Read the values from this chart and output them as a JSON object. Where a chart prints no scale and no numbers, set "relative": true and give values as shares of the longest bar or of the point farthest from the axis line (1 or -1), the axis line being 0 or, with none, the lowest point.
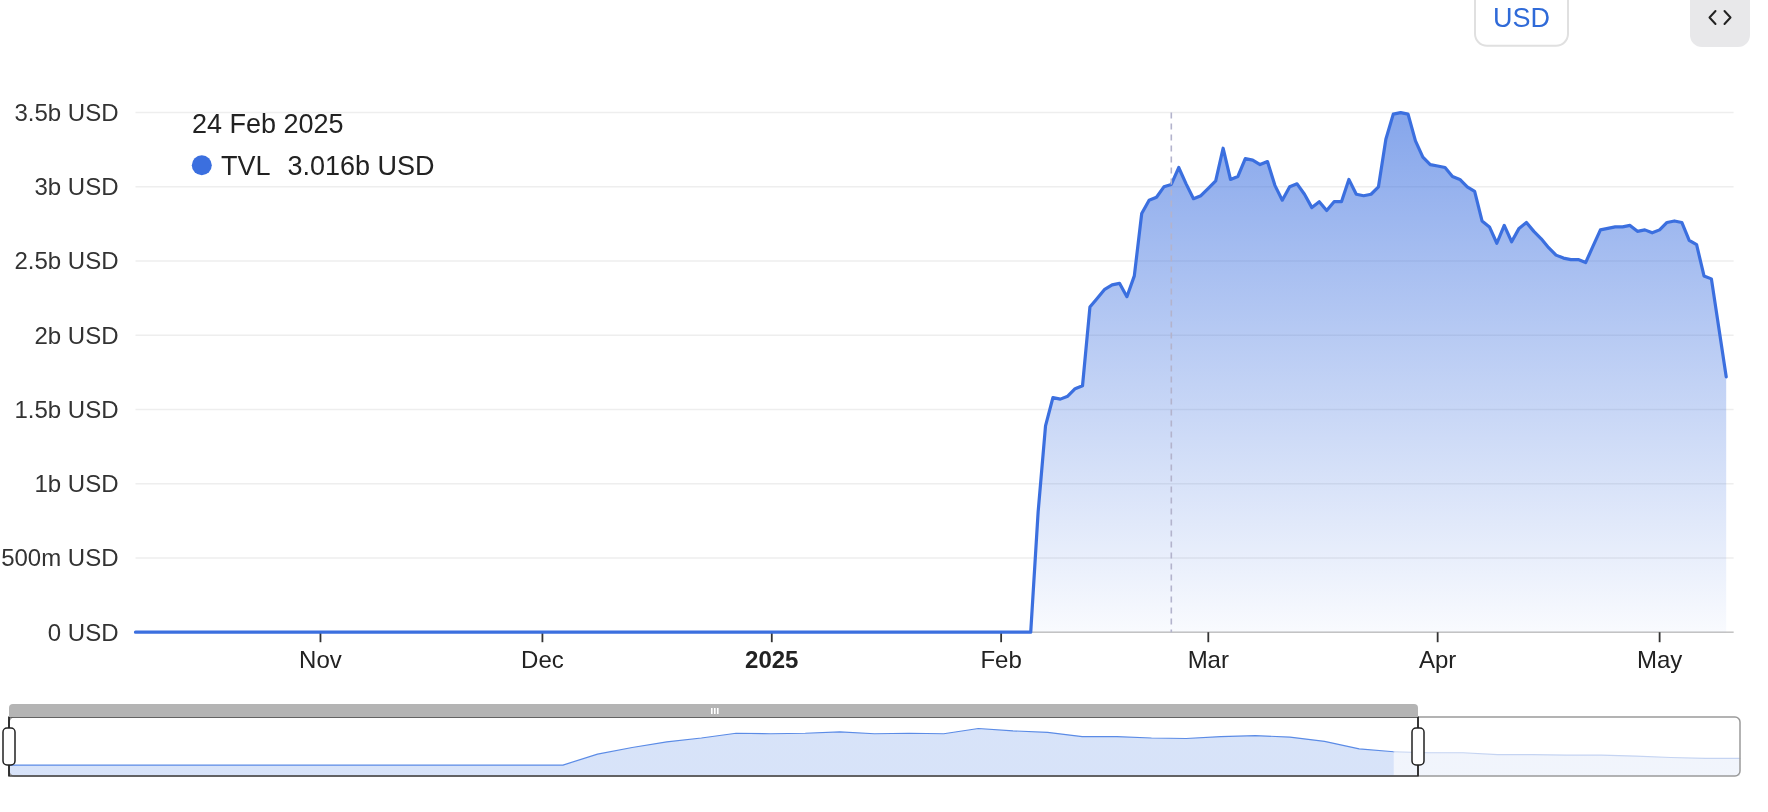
{
  "chart_data": [
    {
      "type": "area",
      "x": [
        "2024-10-07",
        "2025-02-05",
        "2025-02-06",
        "2025-02-07",
        "2025-02-08",
        "2025-02-09",
        "2025-02-10",
        "2025-02-11",
        "2025-02-12",
        "2025-02-13",
        "2025-02-14",
        "2025-02-15",
        "2025-02-16",
        "2025-02-17",
        "2025-02-18",
        "2025-02-19",
        "2025-02-20",
        "2025-02-21",
        "2025-02-22",
        "2025-02-23",
        "2025-02-24",
        "2025-02-25",
        "2025-02-26",
        "2025-02-27",
        "2025-02-28",
        "2025-03-01",
        "2025-03-02",
        "2025-03-03",
        "2025-03-04",
        "2025-03-05",
        "2025-03-06",
        "2025-03-07",
        "2025-03-08",
        "2025-03-09",
        "2025-03-10",
        "2025-03-11",
        "2025-03-12",
        "2025-03-13",
        "2025-03-14",
        "2025-03-15",
        "2025-03-16",
        "2025-03-17",
        "2025-03-18",
        "2025-03-19",
        "2025-03-20",
        "2025-03-21",
        "2025-03-22",
        "2025-03-23",
        "2025-03-24",
        "2025-03-25",
        "2025-03-26",
        "2025-03-27",
        "2025-03-28",
        "2025-03-29",
        "2025-03-30",
        "2025-03-31",
        "2025-04-01",
        "2025-04-02",
        "2025-04-03",
        "2025-04-04",
        "2025-04-05",
        "2025-04-06",
        "2025-04-07",
        "2025-04-08",
        "2025-04-09",
        "2025-04-10",
        "2025-04-11",
        "2025-04-12",
        "2025-04-13",
        "2025-04-14",
        "2025-04-15",
        "2025-04-16",
        "2025-04-17",
        "2025-04-18",
        "2025-04-19",
        "2025-04-20",
        "2025-04-21",
        "2025-04-22",
        "2025-04-23",
        "2025-04-24",
        "2025-04-25",
        "2025-04-26",
        "2025-04-27",
        "2025-04-28",
        "2025-04-29",
        "2025-04-30",
        "2025-05-01",
        "2025-05-02",
        "2025-05-03",
        "2025-05-04",
        "2025-05-05",
        "2025-05-06",
        "2025-05-07",
        "2025-05-08",
        "2025-05-09",
        "2025-05-10"
      ],
      "series": [
        {
          "name": "TVL",
          "color": "#3b6fdf",
          "values": [
            0,
            0,
            810000000,
            1390000000,
            1580000000,
            1570000000,
            1590000000,
            1640000000,
            1660000000,
            2190000000,
            2250000000,
            2310000000,
            2340000000,
            2350000000,
            2260000000,
            2400000000,
            2820000000,
            2910000000,
            2930000000,
            3000000000,
            3016000000,
            3130000000,
            3020000000,
            2920000000,
            2940000000,
            2990000000,
            3040000000,
            3260000000,
            3050000000,
            3070000000,
            3190000000,
            3180000000,
            3150000000,
            3170000000,
            3010000000,
            2910000000,
            3000000000,
            3020000000,
            2950000000,
            2860000000,
            2900000000,
            2840000000,
            2900000000,
            2900000000,
            3050000000,
            2950000000,
            2940000000,
            2950000000,
            3000000000,
            3320000000,
            3490000000,
            3500000000,
            3490000000,
            3310000000,
            3200000000,
            3150000000,
            3140000000,
            3130000000,
            3070000000,
            3050000000,
            3000000000,
            2970000000,
            2770000000,
            2730000000,
            2620000000,
            2740000000,
            2630000000,
            2720000000,
            2760000000,
            2700000000,
            2650000000,
            2590000000,
            2540000000,
            2520000000,
            2510000000,
            2510000000,
            2490000000,
            2600000000,
            2710000000,
            2720000000,
            2730000000,
            2730000000,
            2740000000,
            2700000000,
            2710000000,
            2690000000,
            2710000000,
            2760000000,
            2770000000,
            2760000000,
            2640000000,
            2610000000,
            2400000000,
            2380000000,
            2050000000,
            1720000000
          ]
        }
      ],
      "xlim": [
        "2024-10-07",
        "2025-05-11"
      ],
      "xticks": [
        {
          "value": "2024-11-01",
          "label": "Nov"
        },
        {
          "value": "2024-12-01",
          "label": "Dec"
        },
        {
          "value": "2025-01-01",
          "label": "2025"
        },
        {
          "value": "2025-02-01",
          "label": "Feb"
        },
        {
          "value": "2025-03-01",
          "label": "Mar"
        },
        {
          "value": "2025-04-01",
          "label": "Apr"
        },
        {
          "value": "2025-05-01",
          "label": "May"
        }
      ],
      "ylim": [
        0,
        3500000000
      ],
      "yticks": [
        {
          "value": 0,
          "label": "0 USD"
        },
        {
          "value": 500000000,
          "label": "500m USD"
        },
        {
          "value": 1000000000,
          "label": "1b USD"
        },
        {
          "value": 1500000000,
          "label": "1.5b USD"
        },
        {
          "value": 2000000000,
          "label": "2b USD"
        },
        {
          "value": 2500000000,
          "label": "2.5b USD"
        },
        {
          "value": 3000000000,
          "label": "3b USD"
        },
        {
          "value": 3500000000,
          "label": "3.5b USD"
        }
      ],
      "grid": "y",
      "legend": "top left",
      "ref_lines": [
        {
          "axis": "x",
          "value": "2025-02-24",
          "color": "#b3b3cc",
          "line_style": "dashed"
        }
      ],
      "annotations": [
        "24 Feb 2025",
        "3.016b USD",
        "USD"
      ]
    },
    {
      "type": "area",
      "relative": true,
      "categories": [
        null,
        null,
        null,
        null,
        null,
        null,
        null,
        null,
        null,
        null,
        null,
        null,
        null,
        null,
        null,
        null,
        null,
        null,
        null,
        null,
        null,
        null,
        null,
        null,
        null,
        null,
        null,
        null,
        null,
        null,
        null,
        null,
        null,
        null,
        null,
        null,
        null,
        null,
        null,
        null,
        null,
        null,
        null,
        null,
        null,
        null,
        null,
        null,
        null,
        null,
        null
      ],
      "series": [
        {
          "color": "#5b8be6",
          "values": [
            0.23,
            0.23,
            0.23,
            0.23,
            0.23,
            0.23,
            0.23,
            0.23,
            0.23,
            0.23,
            0.23,
            0.23,
            0.23,
            0.23,
            0.23,
            0.23,
            0.23,
            0.46,
            0.6,
            0.72,
            0.8,
            0.9,
            0.89,
            0.9,
            0.93,
            0.89,
            0.9,
            0.89,
            1.0,
            0.95,
            0.92,
            0.83,
            0.83,
            0.8,
            0.79,
            0.83,
            0.85,
            0.82,
            0.73,
            0.57,
            0.51,
            null,
            null,
            null,
            null,
            null,
            null,
            null,
            null,
            null,
            null
          ]
        },
        {
          "color": "#c5d4f2",
          "values": [
            null,
            null,
            null,
            null,
            null,
            null,
            null,
            null,
            null,
            null,
            null,
            null,
            null,
            null,
            null,
            null,
            null,
            null,
            null,
            null,
            null,
            null,
            null,
            null,
            null,
            null,
            null,
            null,
            null,
            null,
            null,
            null,
            null,
            null,
            null,
            null,
            null,
            null,
            null,
            null,
            0.51,
            0.49,
            0.49,
            0.45,
            0.45,
            0.44,
            0.44,
            0.42,
            0.39,
            0.37,
            0.37
          ]
        }
      ]
    }
  ]
}
